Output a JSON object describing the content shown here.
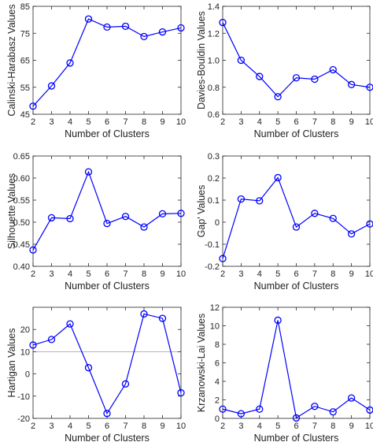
{
  "chart_data": [
    {
      "type": "line",
      "xlabel": "Number of Clusters",
      "ylabel": "Calinski-Harabasz Values",
      "x": [
        2,
        3,
        4,
        5,
        6,
        7,
        8,
        9,
        10
      ],
      "xlim": [
        2,
        10
      ],
      "xticks": [
        "2",
        "3",
        "4",
        "5",
        "6",
        "7",
        "8",
        "9",
        "10"
      ],
      "ylim": [
        45,
        85
      ],
      "yticks": [
        45,
        55,
        65,
        75,
        85
      ],
      "ytick_labels": [
        "45",
        "55",
        "65",
        "75",
        "85"
      ],
      "series": [
        {
          "values": [
            48.0,
            55.5,
            64.0,
            80.3,
            77.3,
            77.6,
            73.8,
            75.5,
            77.0
          ]
        }
      ],
      "reference_line": null,
      "color": "#0000ff",
      "marker": "circle",
      "grid": false
    },
    {
      "type": "line",
      "xlabel": "Number of Clusters",
      "ylabel": "Davies-Bouldin Values",
      "x": [
        2,
        3,
        4,
        5,
        6,
        7,
        8,
        9,
        10
      ],
      "xlim": [
        2,
        10
      ],
      "xticks": [
        "2",
        "3",
        "4",
        "5",
        "6",
        "7",
        "8",
        "9",
        "10"
      ],
      "ylim": [
        0.6,
        1.4
      ],
      "yticks": [
        0.6,
        0.8,
        1.0,
        1.2,
        1.4
      ],
      "ytick_labels": [
        "0.6",
        "0.8",
        "1.0",
        "1.2",
        "1.4"
      ],
      "series": [
        {
          "values": [
            1.28,
            1.0,
            0.88,
            0.73,
            0.87,
            0.86,
            0.93,
            0.82,
            0.8
          ]
        }
      ],
      "reference_line": null,
      "color": "#0000ff",
      "marker": "circle",
      "grid": false
    },
    {
      "type": "line",
      "xlabel": "Number of Clusters",
      "ylabel": "Silhouette Values",
      "x": [
        2,
        3,
        4,
        5,
        6,
        7,
        8,
        9,
        10
      ],
      "xlim": [
        2,
        10
      ],
      "xticks": [
        "2",
        "3",
        "4",
        "5",
        "6",
        "7",
        "8",
        "9",
        "10"
      ],
      "ylim": [
        0.4,
        0.65
      ],
      "yticks": [
        0.4,
        0.45,
        0.5,
        0.55,
        0.6,
        0.65
      ],
      "ytick_labels": [
        "0.40",
        "0.45",
        "0.50",
        "0.55",
        "0.60",
        "0.65"
      ],
      "series": [
        {
          "values": [
            0.437,
            0.51,
            0.508,
            0.614,
            0.497,
            0.513,
            0.489,
            0.519,
            0.52
          ]
        }
      ],
      "reference_line": null,
      "color": "#0000ff",
      "marker": "circle",
      "grid": false
    },
    {
      "type": "line",
      "xlabel": "Number of Clusters",
      "ylabel": "Gap' Values",
      "x": [
        2,
        3,
        4,
        5,
        6,
        7,
        8,
        9,
        10
      ],
      "xlim": [
        2,
        10
      ],
      "xticks": [
        "2",
        "3",
        "4",
        "5",
        "6",
        "7",
        "8",
        "9",
        "10"
      ],
      "ylim": [
        -0.2,
        0.3
      ],
      "yticks": [
        -0.2,
        -0.1,
        0,
        0.1,
        0.2,
        0.3
      ],
      "ytick_labels": [
        "-0.2",
        "-0.1",
        "0",
        "0.1",
        "0.2",
        "0.3"
      ],
      "series": [
        {
          "values": [
            -0.165,
            0.105,
            0.097,
            0.202,
            -0.022,
            0.04,
            0.017,
            -0.053,
            -0.008
          ]
        }
      ],
      "reference_line": null,
      "color": "#0000ff",
      "marker": "circle",
      "grid": false
    },
    {
      "type": "line",
      "xlabel": "Number of Clusters",
      "ylabel": "Hartigan Values",
      "x": [
        2,
        3,
        4,
        5,
        6,
        7,
        8,
        9,
        10
      ],
      "xlim": [
        2,
        10
      ],
      "xticks": [
        "2",
        "3",
        "4",
        "5",
        "6",
        "7",
        "8",
        "9",
        "10"
      ],
      "ylim": [
        -20,
        30
      ],
      "yticks": [
        -20,
        -10,
        0,
        10,
        20
      ],
      "ytick_labels": [
        "-20",
        "-10",
        "0",
        "10",
        "20"
      ],
      "series": [
        {
          "values": [
            13.0,
            15.5,
            22.5,
            2.8,
            -17.8,
            -4.5,
            27.0,
            25.0,
            -8.5
          ]
        }
      ],
      "reference_line": 10,
      "color": "#0000ff",
      "marker": "circle",
      "grid": false
    },
    {
      "type": "line",
      "xlabel": "Number of Clusters",
      "ylabel": "Krzanowski-Lai Values",
      "x": [
        2,
        3,
        4,
        5,
        6,
        7,
        8,
        9,
        10
      ],
      "xlim": [
        2,
        10
      ],
      "xticks": [
        "2",
        "3",
        "4",
        "5",
        "6",
        "7",
        "8",
        "9",
        "10"
      ],
      "ylim": [
        0,
        12
      ],
      "yticks": [
        0,
        2,
        4,
        6,
        8,
        10,
        12
      ],
      "ytick_labels": [
        "0",
        "2",
        "4",
        "6",
        "8",
        "10",
        "12"
      ],
      "series": [
        {
          "values": [
            1.0,
            0.5,
            1.0,
            10.6,
            0.05,
            1.3,
            0.7,
            2.2,
            0.9
          ]
        }
      ],
      "reference_line": null,
      "color": "#0000ff",
      "marker": "circle",
      "grid": false
    }
  ]
}
